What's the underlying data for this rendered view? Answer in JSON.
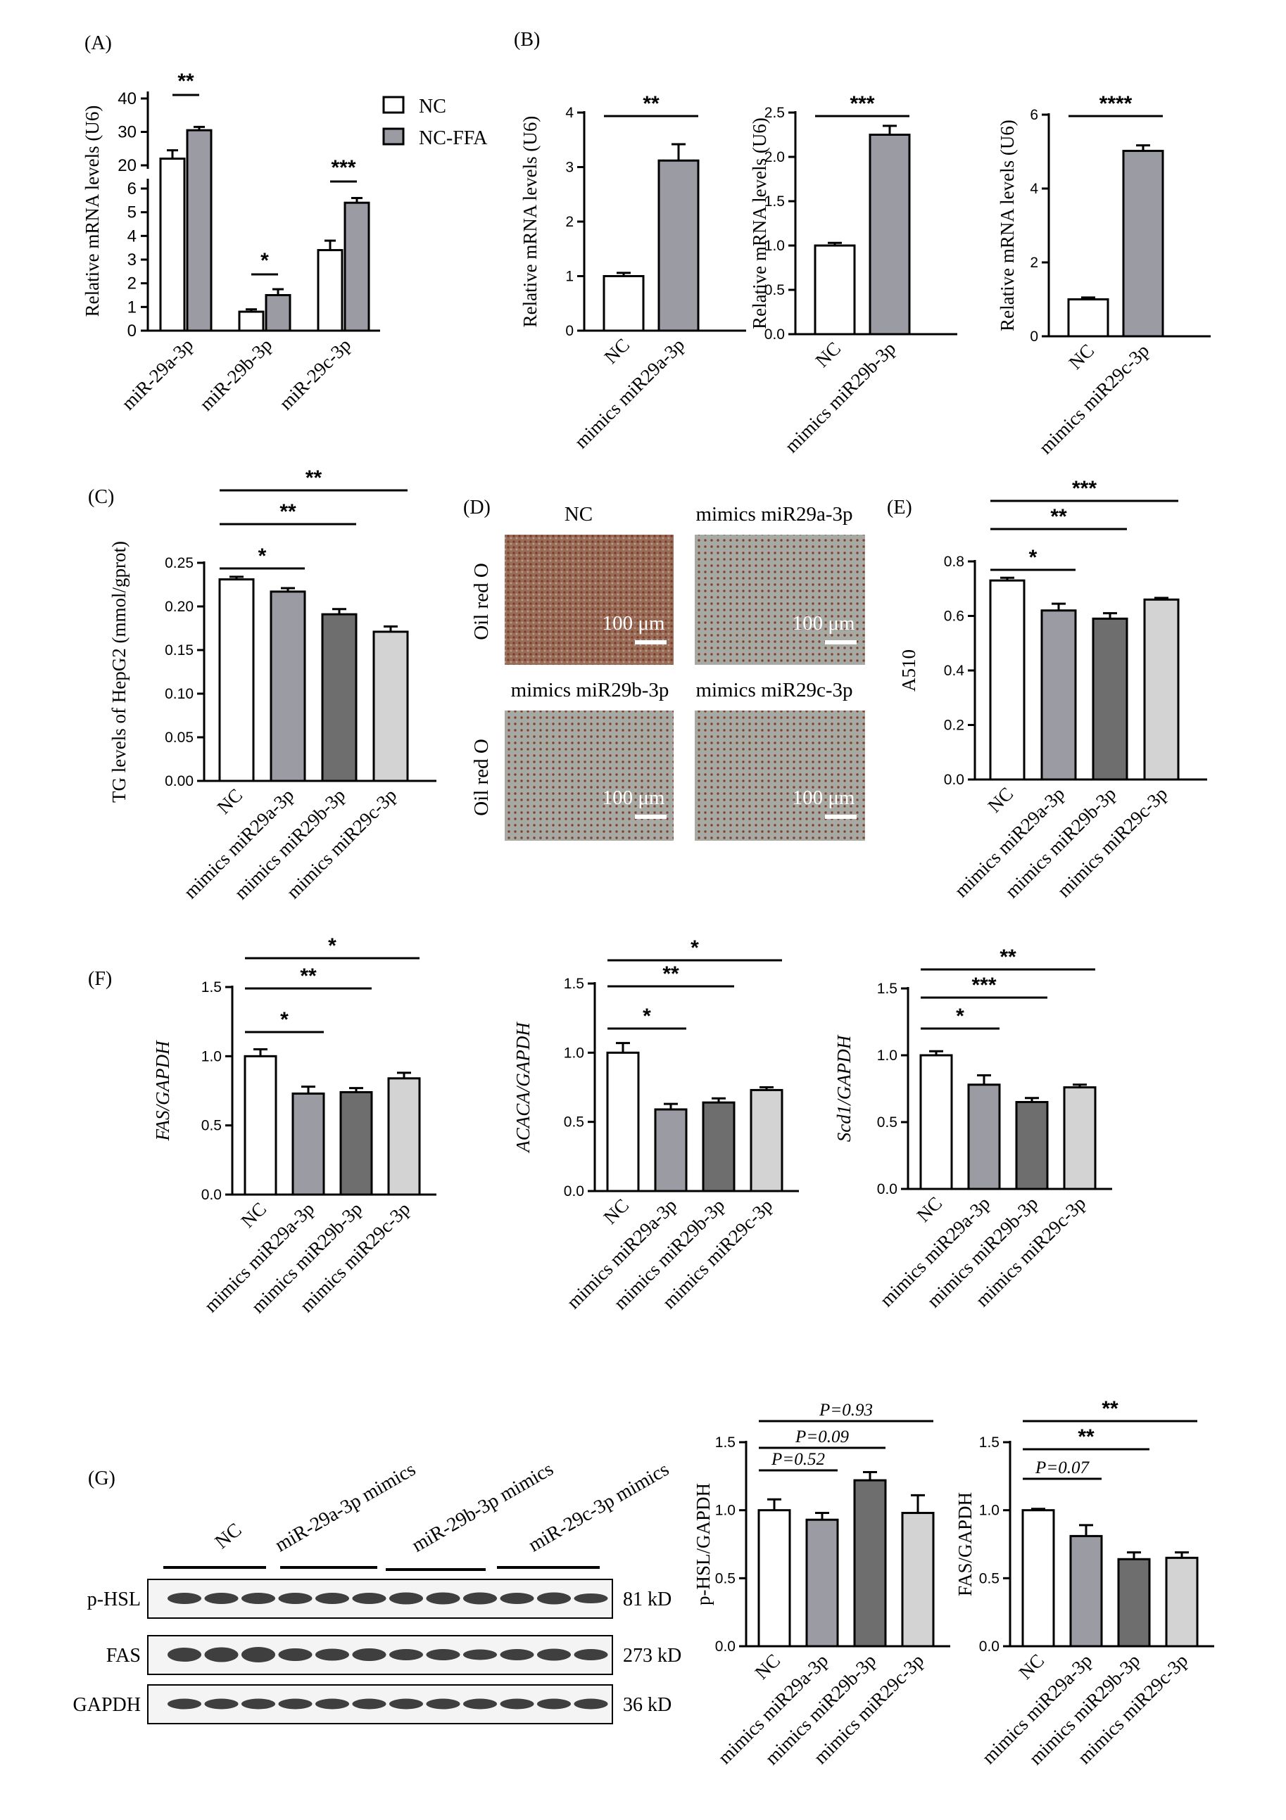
{
  "colors": {
    "white": "#ffffff",
    "lightgrey": "#d3d3d3",
    "midgrey": "#9b9ba3",
    "darkgrey": "#6e6e6e",
    "photo_bg": "#9db1b0",
    "photo_dot": "#8a4a2e"
  },
  "panels": {
    "A": "(A)",
    "B": "(B)",
    "C": "(C)",
    "D": "(D)",
    "E": "(E)",
    "F": "(F)",
    "G": "(G)"
  },
  "chart_data": [
    {
      "id": "A",
      "type": "bar",
      "ylabel": "Relative mRNA levels (U6)",
      "broken_axis": true,
      "yticks_lower": [
        0,
        1,
        2,
        3,
        4,
        5,
        6
      ],
      "yticks_upper": [
        20,
        30,
        40
      ],
      "categories": [
        "miR-29a-3p",
        "miR-29b-3p",
        "miR-29c-3p"
      ],
      "series": [
        {
          "name": "NC",
          "color": "#ffffff",
          "values": [
            22,
            0.8,
            3.4
          ],
          "errors": [
            2.5,
            0.1,
            0.4
          ]
        },
        {
          "name": "NC-FFA",
          "color": "#9b9ba3",
          "values": [
            30.5,
            1.5,
            5.4
          ],
          "errors": [
            1,
            0.25,
            0.2
          ]
        }
      ],
      "significance": [
        "**",
        "*",
        "***"
      ]
    },
    {
      "id": "B1",
      "type": "bar",
      "ylabel": "Relative mRNA levels (U6)",
      "ylim": [
        0,
        4
      ],
      "yticks": [
        "0",
        "1",
        "2",
        "3",
        "4"
      ],
      "categories": [
        "NC",
        "mimics miR29a-3p"
      ],
      "values": [
        1,
        3.12
      ],
      "errors": [
        0.06,
        0.3
      ],
      "colors": [
        "#ffffff",
        "#9b9ba3"
      ],
      "comparisons": [
        {
          "from": 0,
          "to": 1,
          "label": "**"
        }
      ]
    },
    {
      "id": "B2",
      "type": "bar",
      "ylabel": "Relative mRNA levels (U6)",
      "ylim": [
        0,
        2.5
      ],
      "yticks": [
        "0.0",
        "0.5",
        "1.0",
        "1.5",
        "2.0",
        "2.5"
      ],
      "categories": [
        "NC",
        "mimics miR29b-3p"
      ],
      "values": [
        1,
        2.25
      ],
      "errors": [
        0.03,
        0.1
      ],
      "colors": [
        "#ffffff",
        "#9b9ba3"
      ],
      "comparisons": [
        {
          "from": 0,
          "to": 1,
          "label": "***"
        }
      ]
    },
    {
      "id": "B3",
      "type": "bar",
      "ylabel": "Relative mRNA levels (U6)",
      "ylim": [
        0,
        6
      ],
      "yticks": [
        "0",
        "2",
        "4",
        "6"
      ],
      "categories": [
        "NC",
        "mimics miR29c-3p"
      ],
      "values": [
        1,
        5.02
      ],
      "errors": [
        0.05,
        0.15
      ],
      "colors": [
        "#ffffff",
        "#9b9ba3"
      ],
      "comparisons": [
        {
          "from": 0,
          "to": 1,
          "label": "****"
        }
      ]
    },
    {
      "id": "C",
      "type": "bar",
      "ylabel": "TG levels of HepG2 (mmol/gprot)",
      "ylim": [
        0,
        0.25
      ],
      "yticks": [
        "0.00",
        "0.05",
        "0.10",
        "0.15",
        "0.20",
        "0.25"
      ],
      "categories": [
        "NC",
        "mimics miR29a-3p",
        "mimics miR29b-3p",
        "mimics miR29c-3p"
      ],
      "values": [
        0.231,
        0.217,
        0.191,
        0.171
      ],
      "errors": [
        0.003,
        0.004,
        0.006,
        0.006
      ],
      "colors": [
        "#ffffff",
        "#9b9ba3",
        "#6e6e6e",
        "#d3d3d3"
      ],
      "comparisons": [
        {
          "from": 0,
          "to": 1,
          "label": "*"
        },
        {
          "from": 0,
          "to": 2,
          "label": "**"
        },
        {
          "from": 0,
          "to": 3,
          "label": "**"
        }
      ]
    },
    {
      "id": "E",
      "type": "bar",
      "ylabel": "A510",
      "ylim": [
        0,
        0.8
      ],
      "yticks": [
        "0.0",
        "0.2",
        "0.4",
        "0.6",
        "0.8"
      ],
      "categories": [
        "NC",
        "mimics miR29a-3p",
        "mimics miR29b-3p",
        "mimics miR29c-3p"
      ],
      "values": [
        0.73,
        0.62,
        0.59,
        0.66
      ],
      "errors": [
        0.01,
        0.025,
        0.02,
        0.006
      ],
      "colors": [
        "#ffffff",
        "#9b9ba3",
        "#6e6e6e",
        "#d3d3d3"
      ],
      "comparisons": [
        {
          "from": 0,
          "to": 1,
          "label": "*"
        },
        {
          "from": 0,
          "to": 2,
          "label": "**"
        },
        {
          "from": 0,
          "to": 3,
          "label": "***"
        }
      ]
    },
    {
      "id": "F1",
      "type": "bar",
      "ylabel": "FAS/GAPDH",
      "ylim": [
        0,
        1.5
      ],
      "yticks": [
        "0.0",
        "0.5",
        "1.0",
        "1.5"
      ],
      "categories": [
        "NC",
        "mimics miR29a-3p",
        "mimics miR29b-3p",
        "mimics miR29c-3p"
      ],
      "values": [
        1.0,
        0.73,
        0.74,
        0.84
      ],
      "errors": [
        0.05,
        0.05,
        0.03,
        0.04
      ],
      "colors": [
        "#ffffff",
        "#9b9ba3",
        "#6e6e6e",
        "#d3d3d3"
      ],
      "comparisons": [
        {
          "from": 0,
          "to": 1,
          "label": "*"
        },
        {
          "from": 0,
          "to": 2,
          "label": "**"
        },
        {
          "from": 0,
          "to": 3,
          "label": "*"
        }
      ]
    },
    {
      "id": "F2",
      "type": "bar",
      "ylabel": "ACACA/GAPDH",
      "ylim": [
        0,
        1.5
      ],
      "yticks": [
        "0.0",
        "0.5",
        "1.0",
        "1.5"
      ],
      "categories": [
        "NC",
        "mimics miR29a-3p",
        "mimics miR29b-3p",
        "mimics miR29c-3p"
      ],
      "values": [
        1.0,
        0.59,
        0.64,
        0.73
      ],
      "errors": [
        0.07,
        0.04,
        0.03,
        0.02
      ],
      "colors": [
        "#ffffff",
        "#9b9ba3",
        "#6e6e6e",
        "#d3d3d3"
      ],
      "comparisons": [
        {
          "from": 0,
          "to": 1,
          "label": "*"
        },
        {
          "from": 0,
          "to": 2,
          "label": "**"
        },
        {
          "from": 0,
          "to": 3,
          "label": "*"
        }
      ]
    },
    {
      "id": "F3",
      "type": "bar",
      "ylabel": "Scd1/GAPDH",
      "ylim": [
        0,
        1.5
      ],
      "yticks": [
        "0.0",
        "0.5",
        "1.0",
        "1.5"
      ],
      "categories": [
        "NC",
        "mimics miR29a-3p",
        "mimics miR29b-3p",
        "mimics miR29c-3p"
      ],
      "values": [
        1.0,
        0.78,
        0.65,
        0.76
      ],
      "errors": [
        0.03,
        0.07,
        0.03,
        0.02
      ],
      "colors": [
        "#ffffff",
        "#9b9ba3",
        "#6e6e6e",
        "#d3d3d3"
      ],
      "comparisons": [
        {
          "from": 0,
          "to": 1,
          "label": "*"
        },
        {
          "from": 0,
          "to": 2,
          "label": "***"
        },
        {
          "from": 0,
          "to": 3,
          "label": "**"
        }
      ]
    },
    {
      "id": "G1",
      "type": "bar",
      "ylabel": "p-HSL/GAPDH",
      "ylim": [
        0,
        1.5
      ],
      "yticks": [
        "0.0",
        "0.5",
        "1.0",
        "1.5"
      ],
      "categories": [
        "NC",
        "mimics miR29a-3p",
        "mimics miR29b-3p",
        "mimics miR29c-3p"
      ],
      "values": [
        1.0,
        0.93,
        1.22,
        0.98
      ],
      "errors": [
        0.08,
        0.05,
        0.06,
        0.13
      ],
      "colors": [
        "#ffffff",
        "#9b9ba3",
        "#6e6e6e",
        "#d3d3d3"
      ],
      "comparisons": [
        {
          "from": 0,
          "to": 1,
          "label": "P=0.52"
        },
        {
          "from": 0,
          "to": 2,
          "label": "P=0.09"
        },
        {
          "from": 0,
          "to": 3,
          "label": "P=0.93"
        }
      ]
    },
    {
      "id": "G2",
      "type": "bar",
      "ylabel": "FAS/GAPDH",
      "ylim": [
        0,
        1.5
      ],
      "yticks": [
        "0.0",
        "0.5",
        "1.0",
        "1.5"
      ],
      "categories": [
        "NC",
        "mimics miR29a-3p",
        "mimics miR29b-3p",
        "mimics miR29c-3p"
      ],
      "values": [
        1.0,
        0.81,
        0.64,
        0.65
      ],
      "errors": [
        0.01,
        0.08,
        0.05,
        0.04
      ],
      "colors": [
        "#ffffff",
        "#9b9ba3",
        "#6e6e6e",
        "#d3d3d3"
      ],
      "comparisons": [
        {
          "from": 0,
          "to": 1,
          "label": "P=0.07"
        },
        {
          "from": 0,
          "to": 2,
          "label": "**"
        },
        {
          "from": 0,
          "to": 3,
          "label": "**"
        }
      ]
    }
  ],
  "panelA_legend": [
    "NC",
    "NC-FFA"
  ],
  "panelD": {
    "titles": [
      "NC",
      "mimics miR29a-3p",
      "mimics miR29b-3p",
      "mimics miR29c-3p"
    ],
    "stain_label": "Oil red O",
    "scale": "100 μm"
  },
  "panelG_blot": {
    "groups": [
      "NC",
      "miR-29a-3p mimics",
      "miR-29b-3p mimics",
      "miR-29c-3p mimics"
    ],
    "rows": [
      {
        "name": "p-HSL",
        "size": "81 kD"
      },
      {
        "name": "FAS",
        "size": "273 kD"
      },
      {
        "name": "GAPDH",
        "size": "36 kD"
      }
    ]
  }
}
